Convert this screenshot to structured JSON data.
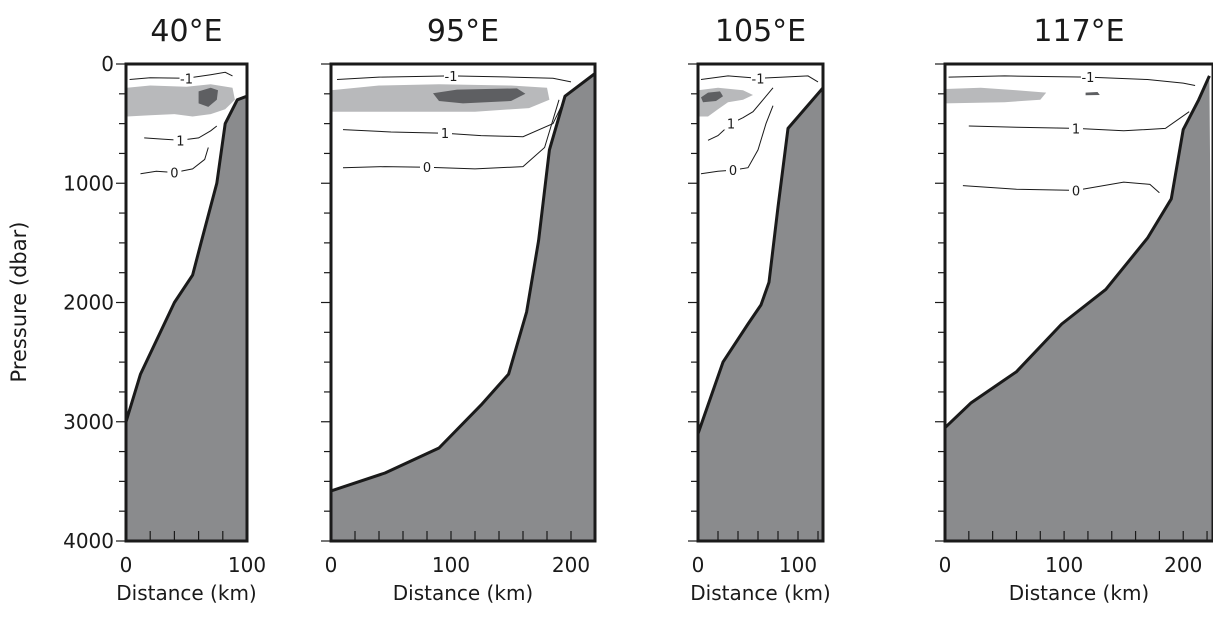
{
  "figure": {
    "y_label": "Pressure (dbar)",
    "colors": {
      "land": "#8a8b8d",
      "shade_light": "#b8b9bb",
      "shade_dark": "#5e5f62",
      "frame": "#1a1a1a",
      "contour": "#1a1a1a"
    }
  },
  "chart_data": [
    {
      "type": "area",
      "title": "40°E",
      "xlabel": "Distance (km)",
      "ylabel": "Pressure (dbar)",
      "xlim": [
        0,
        100
      ],
      "ylim": [
        0,
        4000
      ],
      "y_inverted": true,
      "x_ticks": [
        0,
        100
      ],
      "y_ticks": [
        0,
        1000,
        2000,
        3000,
        4000
      ],
      "bottom_profile": [
        [
          0,
          3000
        ],
        [
          12,
          2600
        ],
        [
          40,
          2000
        ],
        [
          55,
          1770
        ],
        [
          62,
          1500
        ],
        [
          75,
          1000
        ],
        [
          82,
          500
        ],
        [
          92,
          300
        ],
        [
          100,
          270
        ]
      ],
      "shaded_regions": [
        {
          "level": "light",
          "polygon": [
            [
              0,
              200
            ],
            [
              20,
              180
            ],
            [
              50,
              190
            ],
            [
              70,
              170
            ],
            [
              88,
              200
            ],
            [
              90,
              300
            ],
            [
              82,
              380
            ],
            [
              70,
              420
            ],
            [
              55,
              440
            ],
            [
              40,
              420
            ],
            [
              20,
              430
            ],
            [
              0,
              440
            ]
          ]
        },
        {
          "level": "dark",
          "polygon": [
            [
              60,
              230
            ],
            [
              70,
              200
            ],
            [
              76,
              220
            ],
            [
              75,
              300
            ],
            [
              68,
              360
            ],
            [
              60,
              330
            ]
          ]
        }
      ],
      "contours": [
        {
          "label": "-1",
          "points": [
            [
              3,
              130
            ],
            [
              20,
              115
            ],
            [
              50,
              120
            ],
            [
              70,
              90
            ],
            [
              82,
              70
            ],
            [
              88,
              100
            ]
          ]
        },
        {
          "label": "1",
          "points": [
            [
              15,
              620
            ],
            [
              30,
              630
            ],
            [
              45,
              640
            ],
            [
              60,
              620
            ],
            [
              70,
              560
            ],
            [
              75,
              520
            ]
          ]
        },
        {
          "label": "0",
          "points": [
            [
              12,
              920
            ],
            [
              25,
              900
            ],
            [
              40,
              910
            ],
            [
              55,
              880
            ],
            [
              65,
              800
            ],
            [
              68,
              700
            ]
          ]
        }
      ]
    },
    {
      "type": "area",
      "title": "95°E",
      "xlabel": "Distance (km)",
      "xlim": [
        0,
        220
      ],
      "ylim": [
        0,
        4000
      ],
      "y_inverted": true,
      "x_ticks": [
        0,
        100,
        200
      ],
      "y_ticks": [
        0,
        1000,
        2000,
        3000,
        4000
      ],
      "bottom_profile": [
        [
          0,
          3580
        ],
        [
          45,
          3430
        ],
        [
          90,
          3220
        ],
        [
          125,
          2860
        ],
        [
          148,
          2600
        ],
        [
          163,
          2080
        ],
        [
          173,
          1480
        ],
        [
          182,
          720
        ],
        [
          195,
          270
        ],
        [
          220,
          80
        ]
      ],
      "shaded_regions": [
        {
          "level": "light",
          "polygon": [
            [
              0,
              220
            ],
            [
              40,
              180
            ],
            [
              90,
              170
            ],
            [
              150,
              180
            ],
            [
              180,
              200
            ],
            [
              182,
              300
            ],
            [
              165,
              370
            ],
            [
              120,
              400
            ],
            [
              60,
              400
            ],
            [
              0,
              400
            ]
          ]
        },
        {
          "level": "dark",
          "polygon": [
            [
              85,
              245
            ],
            [
              105,
              215
            ],
            [
              155,
              205
            ],
            [
              162,
              250
            ],
            [
              150,
              310
            ],
            [
              110,
              330
            ],
            [
              90,
              310
            ]
          ]
        }
      ],
      "contours": [
        {
          "label": "-1",
          "points": [
            [
              5,
              130
            ],
            [
              40,
              110
            ],
            [
              100,
              100
            ],
            [
              150,
              110
            ],
            [
              185,
              120
            ],
            [
              200,
              150
            ]
          ]
        },
        {
          "label": "1",
          "points": [
            [
              10,
              550
            ],
            [
              50,
              570
            ],
            [
              95,
              580
            ],
            [
              125,
              600
            ],
            [
              160,
              610
            ],
            [
              185,
              500
            ],
            [
              195,
              290
            ]
          ]
        },
        {
          "label": "0",
          "points": [
            [
              10,
              870
            ],
            [
              45,
              860
            ],
            [
              80,
              865
            ],
            [
              120,
              880
            ],
            [
              160,
              860
            ],
            [
              178,
              700
            ],
            [
              190,
              300
            ]
          ]
        }
      ]
    },
    {
      "type": "area",
      "title": "105°E",
      "xlabel": "Distance (km)",
      "xlim": [
        0,
        125
      ],
      "ylim": [
        0,
        4000
      ],
      "y_inverted": true,
      "x_ticks": [
        0,
        100
      ],
      "y_ticks": [
        0,
        1000,
        2000,
        3000,
        4000
      ],
      "bottom_profile": [
        [
          0,
          3100
        ],
        [
          25,
          2500
        ],
        [
          50,
          2180
        ],
        [
          63,
          2020
        ],
        [
          71,
          1830
        ],
        [
          80,
          1200
        ],
        [
          90,
          540
        ],
        [
          125,
          200
        ]
      ],
      "shaded_regions": [
        {
          "level": "light",
          "polygon": [
            [
              0,
              220
            ],
            [
              20,
              200
            ],
            [
              45,
              220
            ],
            [
              55,
              260
            ],
            [
              45,
              300
            ],
            [
              30,
              320
            ],
            [
              20,
              380
            ],
            [
              10,
              440
            ],
            [
              0,
              440
            ]
          ]
        },
        {
          "level": "dark",
          "polygon": [
            [
              3,
              280
            ],
            [
              10,
              240
            ],
            [
              22,
              230
            ],
            [
              25,
              270
            ],
            [
              18,
              310
            ],
            [
              5,
              320
            ]
          ]
        }
      ],
      "contours": [
        {
          "label": "-1",
          "points": [
            [
              3,
              130
            ],
            [
              30,
              100
            ],
            [
              60,
              120
            ],
            [
              85,
              110
            ],
            [
              110,
              100
            ],
            [
              120,
              150
            ]
          ]
        },
        {
          "label": "1",
          "points": [
            [
              10,
              640
            ],
            [
              20,
              600
            ],
            [
              33,
              500
            ],
            [
              45,
              450
            ],
            [
              55,
              400
            ],
            [
              65,
              300
            ],
            [
              75,
              200
            ]
          ]
        },
        {
          "label": "0",
          "points": [
            [
              3,
              920
            ],
            [
              20,
              900
            ],
            [
              35,
              890
            ],
            [
              50,
              870
            ],
            [
              60,
              720
            ],
            [
              68,
              500
            ],
            [
              75,
              350
            ]
          ]
        }
      ]
    },
    {
      "type": "area",
      "title": "117°E",
      "xlabel": "Distance (km)",
      "xlim": [
        0,
        225
      ],
      "ylim": [
        0,
        4000
      ],
      "y_inverted": true,
      "x_ticks": [
        0,
        100,
        200
      ],
      "y_ticks": [
        0,
        1000,
        2000,
        3000,
        4000
      ],
      "bottom_profile": [
        [
          0,
          3050
        ],
        [
          22,
          2840
        ],
        [
          60,
          2580
        ],
        [
          98,
          2180
        ],
        [
          135,
          1890
        ],
        [
          170,
          1460
        ],
        [
          190,
          1130
        ],
        [
          200,
          550
        ],
        [
          213,
          300
        ],
        [
          222,
          100
        ]
      ],
      "shaded_regions": [
        {
          "level": "light",
          "polygon": [
            [
              0,
              210
            ],
            [
              30,
              200
            ],
            [
              60,
              220
            ],
            [
              85,
              240
            ],
            [
              80,
              300
            ],
            [
              50,
              320
            ],
            [
              0,
              330
            ]
          ]
        },
        {
          "level": "dark",
          "polygon": [
            [
              118,
              240
            ],
            [
              128,
              235
            ],
            [
              130,
              260
            ],
            [
              118,
              262
            ]
          ]
        }
      ],
      "contours": [
        {
          "label": "-1",
          "points": [
            [
              3,
              110
            ],
            [
              50,
              100
            ],
            [
              120,
              110
            ],
            [
              170,
              130
            ],
            [
              200,
              160
            ],
            [
              210,
              180
            ]
          ]
        },
        {
          "label": "1",
          "points": [
            [
              20,
              520
            ],
            [
              60,
              530
            ],
            [
              110,
              540
            ],
            [
              150,
              560
            ],
            [
              185,
              540
            ],
            [
              205,
              400
            ]
          ]
        },
        {
          "label": "0",
          "points": [
            [
              15,
              1020
            ],
            [
              60,
              1050
            ],
            [
              110,
              1060
            ],
            [
              150,
              990
            ],
            [
              172,
              1010
            ],
            [
              180,
              1080
            ]
          ]
        }
      ]
    }
  ]
}
